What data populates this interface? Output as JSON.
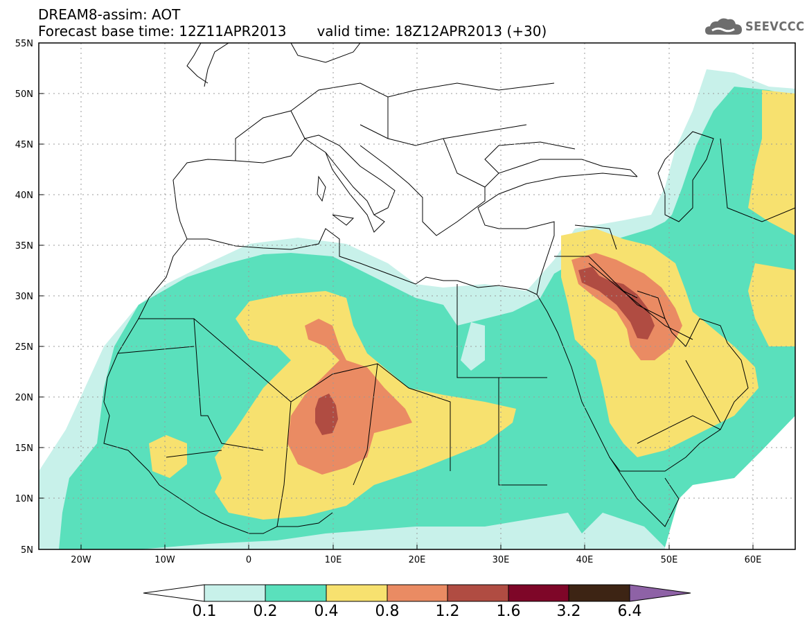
{
  "title": {
    "line1": "DREAM8-assim: AOT",
    "base_time": "Forecast base time: 12Z11APR2013",
    "valid_time": "valid time: 18Z12APR2013 (+30)"
  },
  "logo": {
    "text": "SEEVCCC",
    "icon": "cloud-icon"
  },
  "axes": {
    "lat_labels": [
      "55N",
      "50N",
      "45N",
      "40N",
      "35N",
      "30N",
      "25N",
      "20N",
      "15N",
      "10N",
      "5N"
    ],
    "lon_labels": [
      "20W",
      "10W",
      "0",
      "10E",
      "20E",
      "30E",
      "40E",
      "50E",
      "60E"
    ],
    "lat_range": [
      5,
      55
    ],
    "lon_range": [
      -25,
      65
    ],
    "grid": true
  },
  "legend": {
    "levels": [
      "0.1",
      "0.2",
      "0.4",
      "0.8",
      "1.2",
      "1.6",
      "3.2",
      "6.4"
    ],
    "colors": [
      "#ffffff",
      "#c8f1ea",
      "#5ae0bc",
      "#f7e16f",
      "#ea8b63",
      "#b04c42",
      "#7e0628",
      "#3d2414",
      "#8e62a6"
    ]
  },
  "aot_field": {
    "bands": [
      {
        "min": 0.1,
        "max": 0.2,
        "color": "#c8f1ea"
      },
      {
        "min": 0.2,
        "max": 0.4,
        "color": "#5ae0bc"
      },
      {
        "min": 0.4,
        "max": 0.8,
        "color": "#f7e16f"
      },
      {
        "min": 0.8,
        "max": 1.2,
        "color": "#ea8b63"
      },
      {
        "min": 1.2,
        "max": 1.6,
        "color": "#b04c42"
      }
    ]
  }
}
